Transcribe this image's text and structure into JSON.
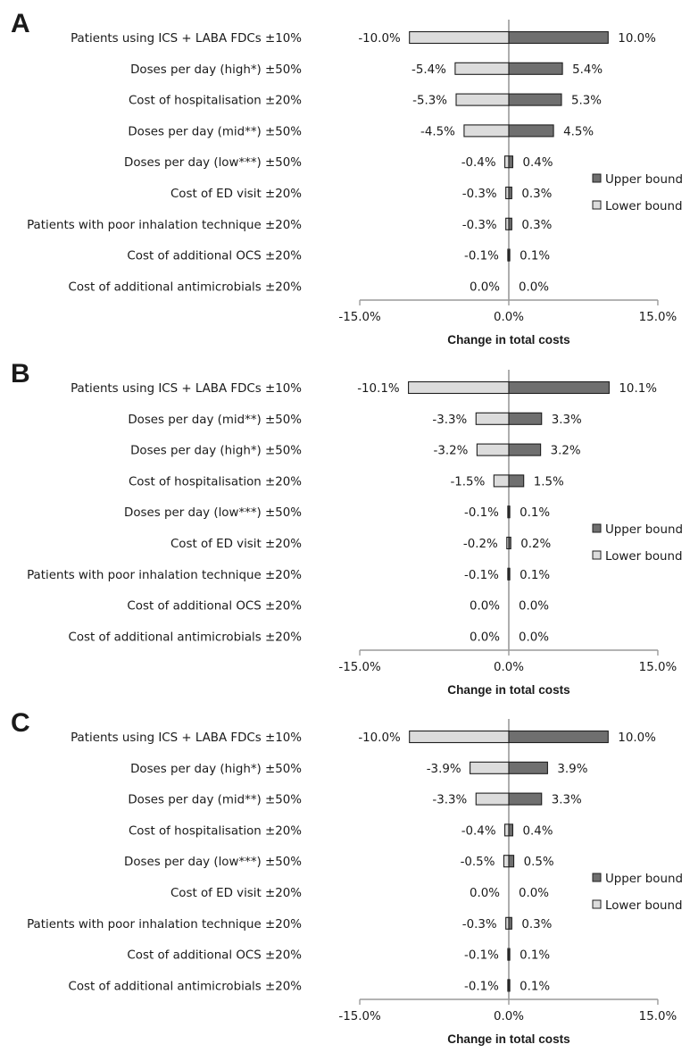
{
  "colors": {
    "upper": "#6f6f6f",
    "lower": "#dcdcdc",
    "outline": "#1f1f1f",
    "axis": "#9a9a9a"
  },
  "chart_data": [
    {
      "type": "bar",
      "orientation": "horizontal",
      "panel": "A",
      "xlabel": "Change in total costs",
      "xlim": [
        -15,
        15
      ],
      "xticks": [
        "-15.0%",
        "0.0%",
        "15.0%"
      ],
      "legend": {
        "position": "right",
        "upper_label": "Upper bound",
        "lower_label": "Lower bound"
      },
      "categories": [
        "Patients using ICS + LABA FDCs ±10%",
        "Doses per day (high*) ±50%",
        "Cost of hospitalisation ±20%",
        "Doses per day (mid**) ±50%",
        "Doses per day (low***) ±50%",
        "Cost of ED visit ±20%",
        "Patients with poor inhalation technique ±20%",
        "Cost of additional OCS ±20%",
        "Cost of additional antimicrobials ±20%"
      ],
      "series": [
        {
          "name": "Upper bound",
          "values": [
            10.0,
            5.4,
            5.3,
            4.5,
            0.4,
            0.3,
            0.3,
            0.1,
            0.0
          ],
          "labels": [
            "10.0%",
            "5.4%",
            "5.3%",
            "4.5%",
            "0.4%",
            "0.3%",
            "0.3%",
            "0.1%",
            "0.0%"
          ]
        },
        {
          "name": "Lower bound",
          "values": [
            -10.0,
            -5.4,
            -5.3,
            -4.5,
            -0.4,
            -0.3,
            -0.3,
            -0.1,
            0.0
          ],
          "labels": [
            "-10.0%",
            "-5.4%",
            "-5.3%",
            "-4.5%",
            "-0.4%",
            "-0.3%",
            "-0.3%",
            "-0.1%",
            "0.0%"
          ]
        }
      ]
    },
    {
      "type": "bar",
      "orientation": "horizontal",
      "panel": "B",
      "xlabel": "Change in total costs",
      "xlim": [
        -15,
        15
      ],
      "xticks": [
        "-15.0%",
        "0.0%",
        "15.0%"
      ],
      "legend": {
        "position": "right",
        "upper_label": "Upper bound",
        "lower_label": "Lower bound"
      },
      "categories": [
        "Patients using ICS + LABA FDCs ±10%",
        "Doses per day (mid**) ±50%",
        "Doses per day (high*) ±50%",
        "Cost of hospitalisation ±20%",
        "Doses per day (low***) ±50%",
        "Cost of ED visit ±20%",
        "Patients with poor inhalation technique ±20%",
        "Cost of additional OCS ±20%",
        "Cost of additional antimicrobials ±20%"
      ],
      "series": [
        {
          "name": "Upper bound",
          "values": [
            10.1,
            3.3,
            3.2,
            1.5,
            0.1,
            0.2,
            0.1,
            0.0,
            0.0
          ],
          "labels": [
            "10.1%",
            "3.3%",
            "3.2%",
            "1.5%",
            "0.1%",
            "0.2%",
            "0.1%",
            "0.0%",
            "0.0%"
          ]
        },
        {
          "name": "Lower bound",
          "values": [
            -10.1,
            -3.3,
            -3.2,
            -1.5,
            -0.1,
            -0.2,
            -0.1,
            0.0,
            0.0
          ],
          "labels": [
            "-10.1%",
            "-3.3%",
            "-3.2%",
            "-1.5%",
            "-0.1%",
            "-0.2%",
            "-0.1%",
            "0.0%",
            "0.0%"
          ]
        }
      ]
    },
    {
      "type": "bar",
      "orientation": "horizontal",
      "panel": "C",
      "xlabel": "Change in total costs",
      "xlim": [
        -15,
        15
      ],
      "xticks": [
        "-15.0%",
        "0.0%",
        "15.0%"
      ],
      "legend": {
        "position": "right",
        "upper_label": "Upper bound",
        "lower_label": "Lower bound"
      },
      "categories": [
        "Patients using ICS + LABA FDCs ±10%",
        "Doses per day (high*) ±50%",
        "Doses per day (mid**) ±50%",
        "Cost of hospitalisation ±20%",
        "Doses per day (low***) ±50%",
        "Cost of ED visit ±20%",
        "Patients with poor inhalation technique ±20%",
        "Cost of additional OCS ±20%",
        "Cost of additional antimicrobials ±20%"
      ],
      "series": [
        {
          "name": "Upper bound",
          "values": [
            10.0,
            3.9,
            3.3,
            0.4,
            0.5,
            0.0,
            0.3,
            0.1,
            0.1
          ],
          "labels": [
            "10.0%",
            "3.9%",
            "3.3%",
            "0.4%",
            "0.5%",
            "0.0%",
            "0.3%",
            "0.1%",
            "0.1%"
          ]
        },
        {
          "name": "Lower bound",
          "values": [
            -10.0,
            -3.9,
            -3.3,
            -0.4,
            -0.5,
            0.0,
            -0.3,
            -0.1,
            -0.1
          ],
          "labels": [
            "-10.0%",
            "-3.9%",
            "-3.3%",
            "-0.4%",
            "-0.5%",
            "0.0%",
            "-0.3%",
            "-0.1%",
            "-0.1%"
          ]
        }
      ]
    }
  ]
}
